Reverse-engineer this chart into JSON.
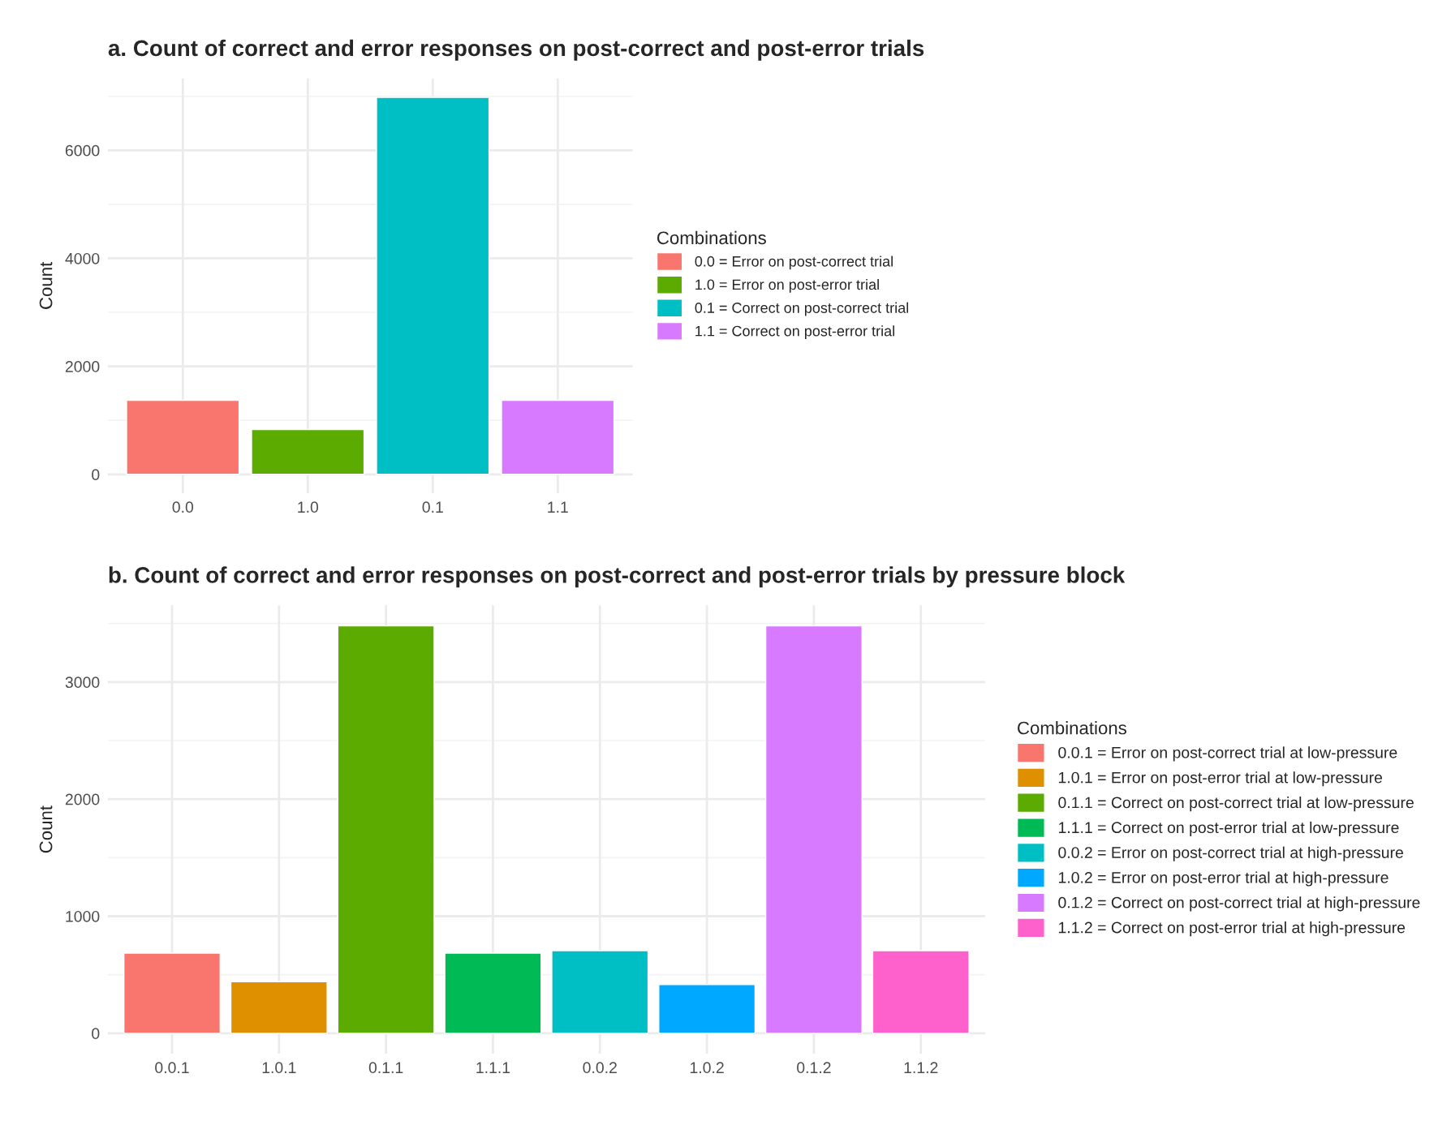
{
  "chart_data": [
    {
      "type": "bar",
      "title": "a. Count of correct and error responses on post-correct and post-error trials",
      "ylabel": "Count",
      "legend_title": "Combinations",
      "legend": "right",
      "grid": true,
      "categories": [
        "0.0",
        "1.0",
        "0.1",
        "1.1"
      ],
      "series": [
        {
          "name": "0.0 = Error on post-correct trial",
          "color": "#f8766d",
          "values": [
            1370,
            null,
            null,
            null
          ]
        },
        {
          "name": "1.0 = Error on post-error trial",
          "color": "#5bab00",
          "values": [
            null,
            830,
            null,
            null
          ]
        },
        {
          "name": "0.1 = Correct on post-correct trial",
          "color": "#00bfc4",
          "values": [
            null,
            null,
            6980,
            null
          ]
        },
        {
          "name": "1.1 = Correct on post-error trial",
          "color": "#d87aff",
          "values": [
            null,
            null,
            null,
            1370
          ]
        }
      ],
      "ylim": [
        -350,
        7330
      ],
      "yticks": [
        0,
        2000,
        4000,
        6000
      ]
    },
    {
      "type": "bar",
      "title": "b. Count of correct and error responses on post-correct and post-error trials by pressure block",
      "ylabel": "Count",
      "legend_title": "Combinations",
      "legend": "right",
      "grid": true,
      "categories": [
        "0.0.1",
        "1.0.1",
        "0.1.1",
        "1.1.1",
        "0.0.2",
        "1.0.2",
        "0.1.2",
        "1.1.2"
      ],
      "series": [
        {
          "name": "0.0.1 = Error on post-correct trial at low-pressure",
          "color": "#f8766d",
          "values": [
            685,
            null,
            null,
            null,
            null,
            null,
            null,
            null
          ]
        },
        {
          "name": "1.0.1 = Error on post-error trial at low-pressure",
          "color": "#de9000",
          "values": [
            null,
            440,
            null,
            null,
            null,
            null,
            null,
            null
          ]
        },
        {
          "name": "0.1.1 = Correct on post-correct trial at low-pressure",
          "color": "#5bab00",
          "values": [
            null,
            null,
            3480,
            null,
            null,
            null,
            null,
            null
          ]
        },
        {
          "name": "1.1.1 = Correct on post-error trial at low-pressure",
          "color": "#00bb55",
          "values": [
            null,
            null,
            null,
            685,
            null,
            null,
            null,
            null
          ]
        },
        {
          "name": "0.0.2 = Error on post-correct trial at high-pressure",
          "color": "#00bfc4",
          "values": [
            null,
            null,
            null,
            null,
            705,
            null,
            null,
            null
          ]
        },
        {
          "name": "1.0.2 = Error on post-error trial at high-pressure",
          "color": "#00a9ff",
          "values": [
            null,
            null,
            null,
            null,
            null,
            415,
            null,
            null
          ]
        },
        {
          "name": "0.1.2 = Correct on post-correct trial at high-pressure",
          "color": "#d87aff",
          "values": [
            null,
            null,
            null,
            null,
            null,
            null,
            3480,
            null
          ]
        },
        {
          "name": "1.1.2 = Correct on post-error trial at high-pressure",
          "color": "#ff61cc",
          "values": [
            null,
            null,
            null,
            null,
            null,
            null,
            null,
            705
          ]
        }
      ],
      "ylim": [
        -175,
        3655
      ],
      "yticks": [
        0,
        1000,
        2000,
        3000
      ]
    }
  ]
}
